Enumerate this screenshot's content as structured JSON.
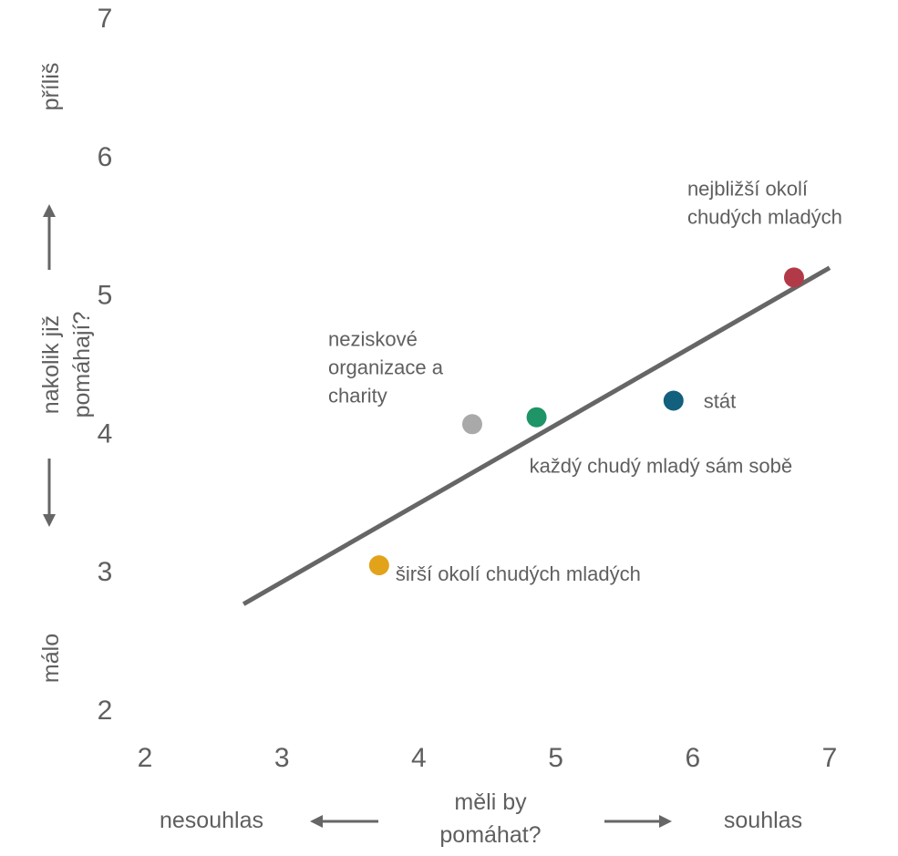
{
  "chart_data": {
    "type": "scatter",
    "xlim": [
      2,
      7
    ],
    "ylim": [
      2,
      7
    ],
    "x_ticks": [
      2,
      3,
      4,
      5,
      6,
      7
    ],
    "y_ticks": [
      2,
      3,
      4,
      5,
      6,
      7
    ],
    "xlabel": [
      "měli by",
      "pomáhat?"
    ],
    "ylabel": [
      "nakolik již",
      "pomáhají?"
    ],
    "x_low": "nesouhlas",
    "x_high": "souhlas",
    "y_low": "málo",
    "y_high": "příliš",
    "grid": false,
    "legend": "none",
    "points": [
      {
        "label": [
          "nejbližší okolí",
          "chudých mladých"
        ],
        "x": 6.74,
        "y": 5.12,
        "color": "#b23a48"
      },
      {
        "label": [
          "stát"
        ],
        "x": 5.86,
        "y": 4.23,
        "color": "#125f7e"
      },
      {
        "label": [
          "každý chudý mladý sám sobě"
        ],
        "x": 4.86,
        "y": 4.11,
        "color": "#1e9467"
      },
      {
        "label": [
          "neziskové",
          "organizace a",
          "charity"
        ],
        "x": 4.39,
        "y": 4.06,
        "color": "#a9a9a9"
      },
      {
        "label": [
          "širší okolí chudých mladých"
        ],
        "x": 3.71,
        "y": 3.04,
        "color": "#e2a31b"
      }
    ],
    "trendline": {
      "x": [
        2.72,
        7.0
      ],
      "y": [
        2.76,
        5.19
      ],
      "color": "#666666"
    }
  }
}
